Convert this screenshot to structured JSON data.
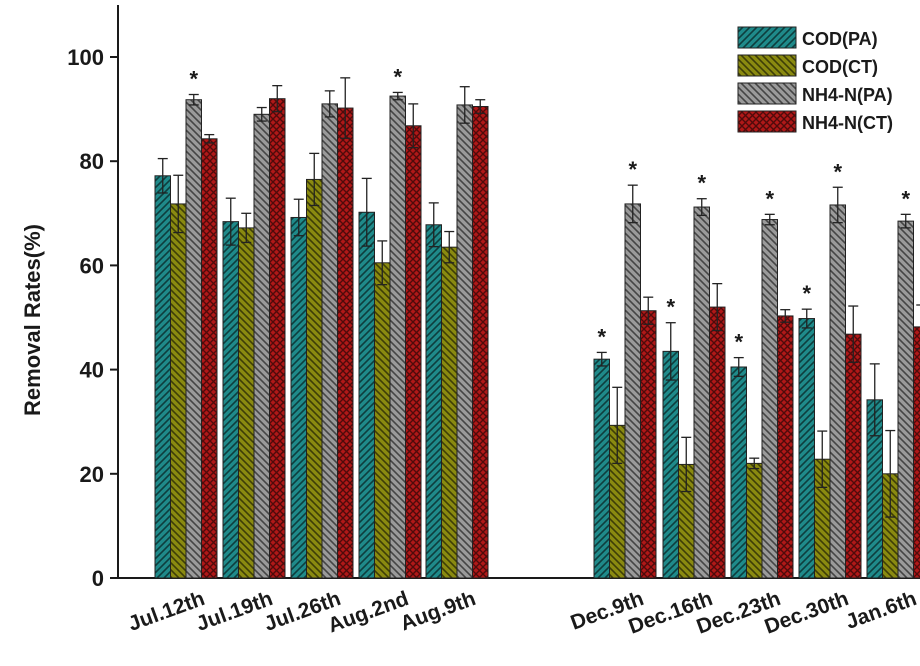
{
  "chart_data": {
    "type": "bar",
    "title": "",
    "xlabel": "",
    "ylabel": "Removal Rates(%)",
    "ylim": [
      0,
      105
    ],
    "yticks": [
      0,
      20,
      40,
      60,
      80,
      100
    ],
    "grid": false,
    "legend_position": "top-right",
    "categories": [
      "Jul.12th",
      "Jul.19th",
      "Jul.26th",
      "Aug.2nd",
      "Aug.9th",
      "Dec.9th",
      "Dec.16th",
      "Dec.23th",
      "Dec.30th",
      "Jan.6th"
    ],
    "significance_marker": "*",
    "series": [
      {
        "name": "COD(PA)",
        "color": "#1f8a8a",
        "pattern": "hatch-right",
        "values": [
          77.2,
          68.4,
          69.2,
          70.2,
          67.8,
          42.0,
          43.5,
          40.5,
          49.8,
          34.2
        ],
        "errors": [
          3.3,
          4.5,
          3.5,
          6.5,
          4.2,
          1.3,
          5.5,
          1.8,
          1.8,
          6.9
        ],
        "significant": [
          false,
          false,
          false,
          false,
          false,
          true,
          true,
          true,
          true,
          false
        ]
      },
      {
        "name": "COD(CT)",
        "color": "#8a8a10",
        "pattern": "hatch-left",
        "values": [
          71.8,
          67.2,
          76.5,
          60.5,
          63.5,
          29.3,
          21.8,
          22.0,
          22.8,
          20.0
        ],
        "errors": [
          5.5,
          2.8,
          5.0,
          4.2,
          3.0,
          7.3,
          5.2,
          1.0,
          5.4,
          8.3
        ],
        "significant": [
          false,
          false,
          false,
          false,
          false,
          false,
          false,
          false,
          false,
          false
        ]
      },
      {
        "name": "NH4-N(PA)",
        "color": "#9a9a9a",
        "pattern": "hatch-left",
        "values": [
          91.8,
          89.0,
          91.0,
          92.5,
          90.8,
          71.8,
          71.2,
          68.8,
          71.6,
          68.5
        ],
        "errors": [
          1.0,
          1.3,
          2.5,
          0.7,
          3.5,
          3.6,
          1.6,
          1.0,
          3.4,
          1.3
        ],
        "significant": [
          true,
          false,
          false,
          true,
          false,
          true,
          true,
          true,
          true,
          true
        ]
      },
      {
        "name": "NH4-N(CT)",
        "color": "#b01818",
        "pattern": "cross",
        "values": [
          84.3,
          92.0,
          90.2,
          86.8,
          90.5,
          51.3,
          52.0,
          50.3,
          46.8,
          48.2
        ],
        "errors": [
          0.8,
          2.5,
          5.8,
          4.2,
          1.3,
          2.6,
          4.5,
          1.2,
          5.4,
          4.2
        ],
        "significant": [
          false,
          false,
          false,
          false,
          false,
          false,
          false,
          false,
          false,
          false
        ]
      }
    ]
  }
}
